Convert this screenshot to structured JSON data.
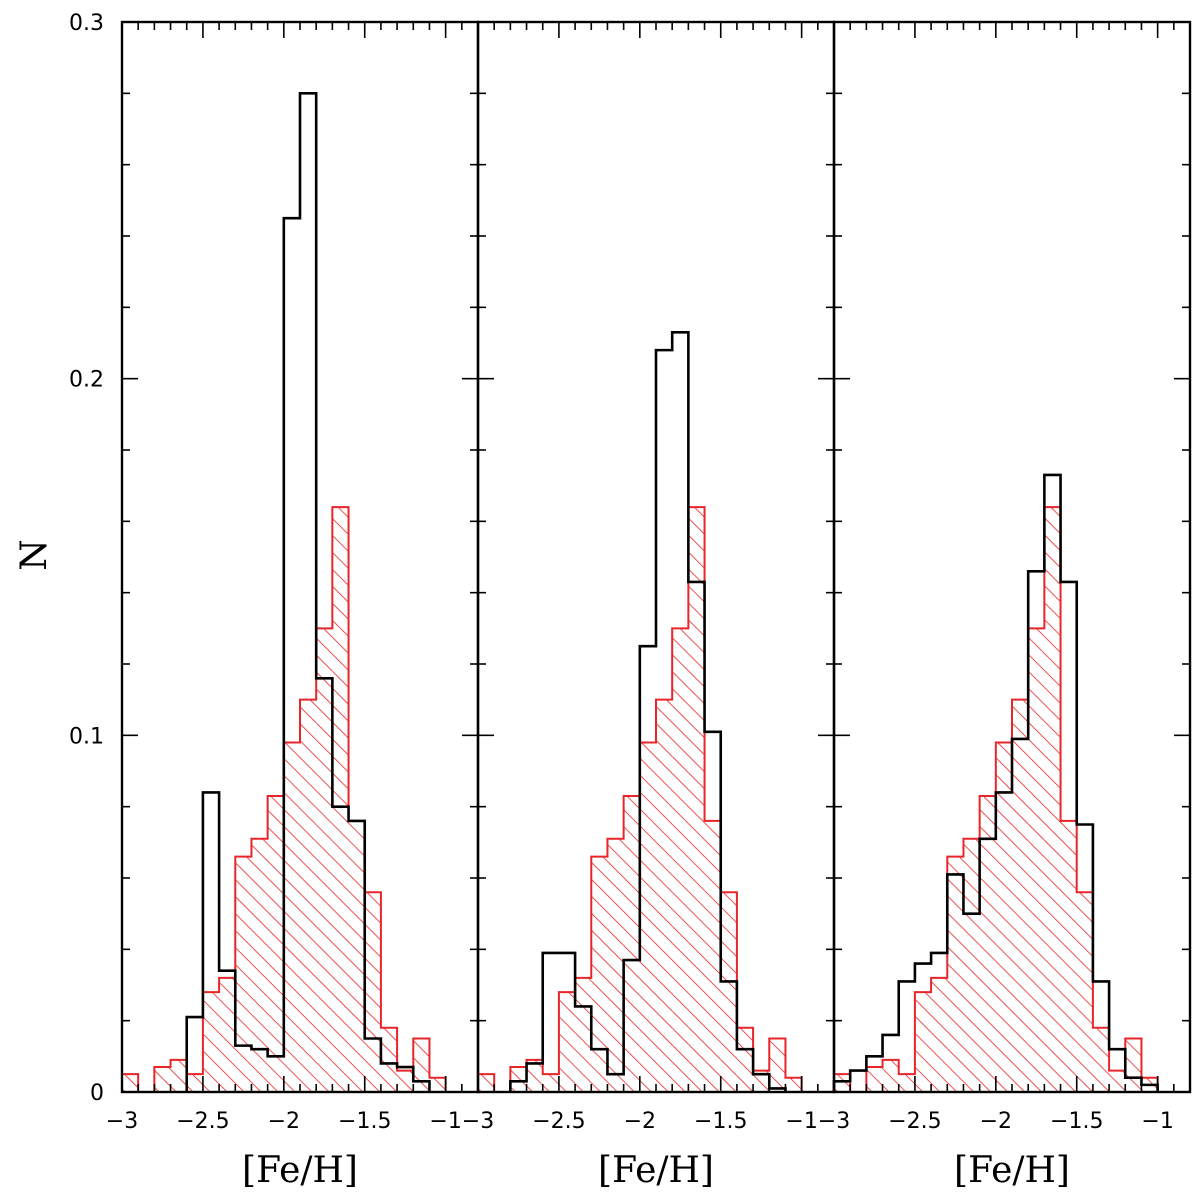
{
  "chart_data": {
    "type": "bar",
    "ylabel": "N",
    "ylim": [
      0,
      0.3
    ],
    "yticks": [
      0,
      0.1,
      0.2,
      0.3
    ],
    "ytick_labels": [
      "0",
      "0.1",
      "0.2",
      "0.3"
    ],
    "bin_width": 0.1,
    "colors": {
      "outline_series": "#000000",
      "hatched_series": "#e8262a"
    },
    "panels": [
      {
        "xlabel": "[Fe/H]",
        "xlim": [
          -3.0,
          -0.8
        ],
        "xticks": [
          -3,
          -2.5,
          -2,
          -1.5,
          -1
        ],
        "xtick_labels": [
          "−3",
          "−2.5",
          "−2",
          "−1.5",
          "−1"
        ],
        "series": [
          {
            "style": "hatched",
            "bin_edges": [
              -3.0,
              -2.9,
              -2.8,
              -2.7,
              -2.6,
              -2.5,
              -2.4,
              -2.3,
              -2.2,
              -2.1,
              -2.0,
              -1.9,
              -1.8,
              -1.7,
              -1.6,
              -1.5,
              -1.4,
              -1.3,
              -1.2,
              -1.1,
              -1.0,
              -0.9
            ],
            "values": [
              0.005,
              0,
              0.007,
              0.009,
              0.005,
              0.028,
              0.032,
              0.066,
              0.071,
              0.083,
              0.098,
              0.11,
              0.13,
              0.164,
              0.076,
              0.056,
              0.018,
              0.006,
              0.015,
              0.004,
              0
            ]
          },
          {
            "style": "outline",
            "bin_edges": [
              -2.6,
              -2.5,
              -2.4,
              -2.3,
              -2.2,
              -2.1,
              -2.0,
              -1.9,
              -1.8,
              -1.7,
              -1.6,
              -1.5,
              -1.4,
              -1.3,
              -1.2,
              -1.1
            ],
            "values": [
              0.021,
              0.084,
              0.034,
              0.013,
              0.012,
              0.01,
              0.245,
              0.28,
              0.116,
              0.08,
              0.076,
              0.015,
              0.008,
              0.007,
              0.003
            ]
          }
        ]
      },
      {
        "xlabel": "[Fe/H]",
        "xlim": [
          -3.0,
          -0.8
        ],
        "xticks": [
          -3,
          -2.5,
          -2,
          -1.5,
          -1
        ],
        "xtick_labels": [
          "−3",
          "−2.5",
          "−2",
          "−1.5",
          "−1"
        ],
        "series": [
          {
            "style": "hatched",
            "bin_edges": [
              -3.0,
              -2.9,
              -2.8,
              -2.7,
              -2.6,
              -2.5,
              -2.4,
              -2.3,
              -2.2,
              -2.1,
              -2.0,
              -1.9,
              -1.8,
              -1.7,
              -1.6,
              -1.5,
              -1.4,
              -1.3,
              -1.2,
              -1.1,
              -1.0,
              -0.9
            ],
            "values": [
              0.005,
              0,
              0.007,
              0.009,
              0.005,
              0.028,
              0.032,
              0.066,
              0.071,
              0.083,
              0.098,
              0.11,
              0.13,
              0.164,
              0.076,
              0.056,
              0.018,
              0.006,
              0.015,
              0.004,
              0
            ]
          },
          {
            "style": "outline",
            "bin_edges": [
              -2.8,
              -2.7,
              -2.6,
              -2.5,
              -2.4,
              -2.3,
              -2.2,
              -2.1,
              -2.0,
              -1.9,
              -1.8,
              -1.7,
              -1.6,
              -1.5,
              -1.4,
              -1.3,
              -1.2,
              -1.1
            ],
            "values": [
              0.003,
              0.008,
              0.039,
              0.039,
              0.024,
              0.012,
              0.005,
              0.037,
              0.125,
              0.208,
              0.213,
              0.143,
              0.101,
              0.031,
              0.012,
              0.005,
              0.001
            ]
          }
        ]
      },
      {
        "xlabel": "[Fe/H]",
        "xlim": [
          -3.0,
          -0.8
        ],
        "xticks": [
          -3,
          -2.5,
          -2,
          -1.5,
          -1
        ],
        "xtick_labels": [
          "−3",
          "−2.5",
          "−2",
          "−1.5",
          "−1"
        ],
        "series": [
          {
            "style": "hatched",
            "bin_edges": [
              -3.0,
              -2.9,
              -2.8,
              -2.7,
              -2.6,
              -2.5,
              -2.4,
              -2.3,
              -2.2,
              -2.1,
              -2.0,
              -1.9,
              -1.8,
              -1.7,
              -1.6,
              -1.5,
              -1.4,
              -1.3,
              -1.2,
              -1.1,
              -1.0,
              -0.9
            ],
            "values": [
              0.005,
              0,
              0.007,
              0.009,
              0.005,
              0.028,
              0.032,
              0.066,
              0.071,
              0.083,
              0.098,
              0.11,
              0.13,
              0.164,
              0.076,
              0.056,
              0.018,
              0.006,
              0.015,
              0.004,
              0
            ]
          },
          {
            "style": "outline",
            "bin_edges": [
              -3.0,
              -2.9,
              -2.8,
              -2.7,
              -2.6,
              -2.5,
              -2.4,
              -2.3,
              -2.2,
              -2.1,
              -2.0,
              -1.9,
              -1.8,
              -1.7,
              -1.6,
              -1.5,
              -1.4,
              -1.3,
              -1.2,
              -1.1,
              -1.0
            ],
            "values": [
              0.003,
              0.006,
              0.01,
              0.016,
              0.031,
              0.036,
              0.039,
              0.061,
              0.05,
              0.071,
              0.084,
              0.099,
              0.146,
              0.173,
              0.143,
              0.075,
              0.031,
              0.012,
              0.004,
              0.002
            ]
          }
        ]
      }
    ]
  }
}
